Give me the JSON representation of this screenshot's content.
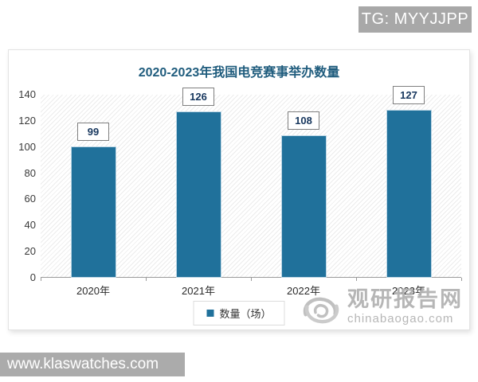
{
  "badge": {
    "text": "TG: MYYJJPP"
  },
  "footer": {
    "url": "www.klaswatches.com"
  },
  "watermark": {
    "name": "观研报告网",
    "domain": "chinabaogao.com"
  },
  "chart_data": {
    "type": "bar",
    "title": "2020-2023年我国电竞赛事举办数量",
    "categories": [
      "2020年",
      "2021年",
      "2022年",
      "2023年"
    ],
    "values": [
      99,
      126,
      108,
      127
    ],
    "series_name": "数量（场）",
    "xlabel": "",
    "ylabel": "",
    "ylim": [
      0,
      140
    ],
    "yticks": [
      0,
      20,
      40,
      60,
      80,
      100,
      120,
      140
    ],
    "grid": false,
    "legend_position": "bottom",
    "bar_color": "#20719b",
    "title_color": "#1f5c7d"
  }
}
